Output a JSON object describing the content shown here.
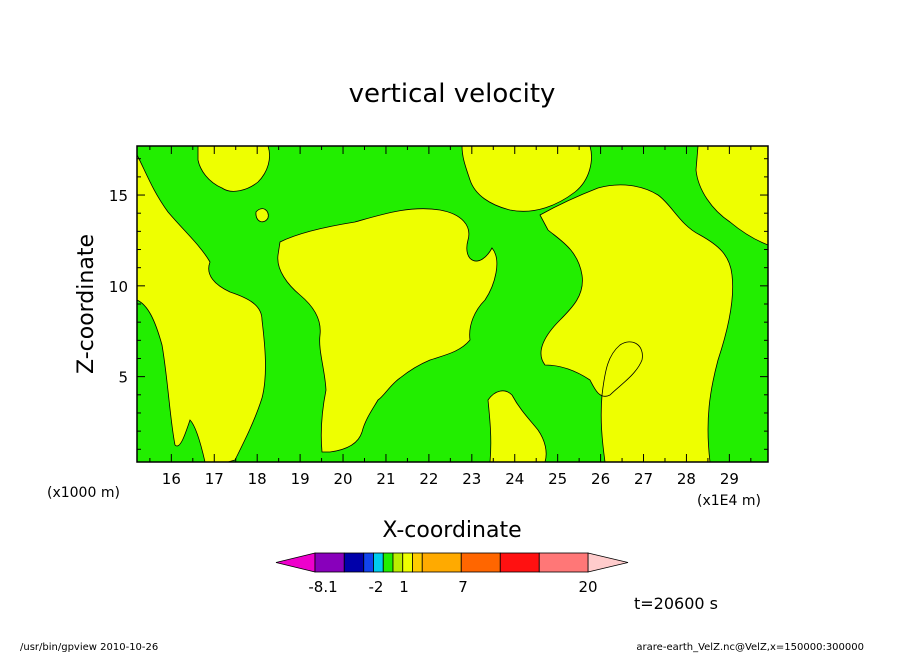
{
  "chart_data": {
    "type": "heatmap",
    "title": "vertical velocity",
    "xlabel": "X-coordinate",
    "ylabel": "Z-coordinate",
    "x_unit_left": "(x1000 m)",
    "x_unit_right": "(x1E4 m)",
    "xlim": [
      15.2,
      29.9
    ],
    "ylim": [
      0.3,
      17.7
    ],
    "x_ticks": [
      "16",
      "17",
      "18",
      "19",
      "20",
      "21",
      "22",
      "23",
      "24",
      "25",
      "26",
      "27",
      "28",
      "29"
    ],
    "y_ticks": [
      "5",
      "10",
      "15"
    ],
    "colors": {
      "green": "#22ee00",
      "yellow": "#eeff00"
    },
    "colorbar": {
      "colors": [
        "#ee00cc",
        "#8800bb",
        "#0000aa",
        "#1144ee",
        "#00ccee",
        "#22ee00",
        "#bbee00",
        "#eeff00",
        "#ffcc00",
        "#ffaa00",
        "#ff6600",
        "#ff1111",
        "#ff7777",
        "#ffbbbb",
        "#ffcccc"
      ],
      "labels": [
        "-8.1",
        "-2",
        "1",
        "7",
        "20"
      ]
    },
    "time_label": "t=20600 s",
    "footer_left": "/usr/bin/gpview  2010-10-26",
    "footer_right": "arare-earth_VelZ.nc@VelZ,x=150000:300000"
  }
}
